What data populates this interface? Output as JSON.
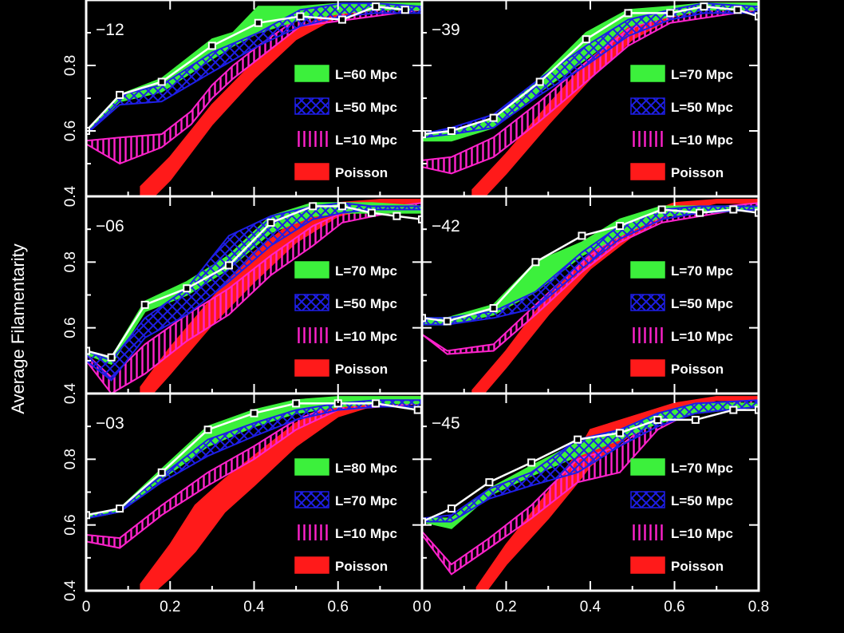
{
  "chart_data": {
    "type": "area",
    "ylabel": "Average Filamentarity",
    "xlim": [
      0,
      0.8
    ],
    "ylim": [
      0.4,
      1.0
    ],
    "x_ticks": [
      "0",
      "0.2",
      "0.4",
      "0.6",
      "0.8"
    ],
    "x_ticks_left": [
      "0",
      "0.2",
      "0.4",
      "0.6",
      "0"
    ],
    "y_ticks": [
      "0.4",
      "0.6",
      "0.8"
    ],
    "colors": {
      "large": "#3cf03c",
      "medium": "#1e1ee6",
      "small": "#ff22cc",
      "poisson": "#ff1a1a",
      "data": "#ffffff"
    },
    "panels": [
      {
        "label": "−12",
        "legend": [
          "L=60 Mpc",
          "L=50 Mpc",
          "L=10 Mpc",
          "Poisson"
        ],
        "data_x": [
          0.0,
          0.08,
          0.18,
          0.3,
          0.41,
          0.51,
          0.61,
          0.69,
          0.76
        ],
        "data_y": [
          0.6,
          0.71,
          0.75,
          0.86,
          0.93,
          0.95,
          0.94,
          0.98,
          0.97
        ],
        "large_x": [
          0.0,
          0.08,
          0.18,
          0.3,
          0.35,
          0.41,
          0.51,
          0.61,
          0.69,
          0.8
        ],
        "large_lo": [
          0.59,
          0.69,
          0.72,
          0.82,
          0.86,
          0.9,
          0.94,
          0.96,
          0.97,
          0.97
        ],
        "large_hi": [
          0.6,
          0.71,
          0.76,
          0.88,
          0.9,
          0.98,
          0.98,
          0.99,
          0.99,
          0.99
        ],
        "medium_x": [
          0.0,
          0.08,
          0.18,
          0.3,
          0.41,
          0.51,
          0.61,
          0.69,
          0.8
        ],
        "medium_lo": [
          0.59,
          0.68,
          0.69,
          0.78,
          0.86,
          0.92,
          0.95,
          0.96,
          0.96
        ],
        "medium_hi": [
          0.6,
          0.71,
          0.74,
          0.84,
          0.9,
          0.97,
          0.99,
          0.99,
          0.98
        ],
        "small_x": [
          0.0,
          0.08,
          0.18,
          0.25,
          0.3,
          0.35,
          0.41,
          0.51,
          0.8
        ],
        "small_lo": [
          0.56,
          0.5,
          0.55,
          0.62,
          0.7,
          0.76,
          0.82,
          0.92,
          0.97
        ],
        "small_hi": [
          0.57,
          0.58,
          0.59,
          0.66,
          0.74,
          0.8,
          0.86,
          0.95,
          0.98
        ],
        "poisson_x": [
          0.13,
          0.2,
          0.3,
          0.4,
          0.5,
          0.6,
          0.7,
          0.8
        ],
        "poisson_lo": [
          0.36,
          0.45,
          0.62,
          0.76,
          0.88,
          0.95,
          0.98,
          0.98
        ],
        "poisson_hi": [
          0.43,
          0.52,
          0.68,
          0.81,
          0.91,
          0.97,
          0.99,
          0.99
        ]
      },
      {
        "label": "−39",
        "legend": [
          "L=70 Mpc",
          "L=50 Mpc",
          "L=10 Mpc",
          "Poisson"
        ],
        "data_x": [
          0.0,
          0.07,
          0.17,
          0.28,
          0.39,
          0.49,
          0.59,
          0.67,
          0.75,
          0.8
        ],
        "data_y": [
          0.59,
          0.6,
          0.64,
          0.75,
          0.88,
          0.96,
          0.96,
          0.98,
          0.97,
          0.95
        ],
        "large_x": [
          0.0,
          0.07,
          0.17,
          0.28,
          0.39,
          0.49,
          0.59,
          0.67,
          0.8
        ],
        "large_lo": [
          0.57,
          0.57,
          0.61,
          0.72,
          0.82,
          0.92,
          0.95,
          0.97,
          0.97
        ],
        "large_hi": [
          0.59,
          0.6,
          0.64,
          0.76,
          0.9,
          0.97,
          0.98,
          0.99,
          0.99
        ],
        "medium_x": [
          0.0,
          0.07,
          0.17,
          0.28,
          0.39,
          0.49,
          0.59,
          0.67,
          0.8
        ],
        "medium_lo": [
          0.58,
          0.59,
          0.61,
          0.71,
          0.8,
          0.89,
          0.94,
          0.96,
          0.96
        ],
        "medium_hi": [
          0.59,
          0.61,
          0.65,
          0.76,
          0.86,
          0.94,
          0.97,
          0.99,
          0.98
        ],
        "small_x": [
          0.0,
          0.07,
          0.17,
          0.28,
          0.39,
          0.49,
          0.59,
          0.8
        ],
        "small_lo": [
          0.49,
          0.47,
          0.52,
          0.63,
          0.75,
          0.86,
          0.93,
          0.97
        ],
        "small_hi": [
          0.51,
          0.52,
          0.58,
          0.69,
          0.81,
          0.91,
          0.96,
          0.99
        ],
        "poisson_x": [
          0.12,
          0.2,
          0.3,
          0.4,
          0.5,
          0.6,
          0.7,
          0.8
        ],
        "poisson_lo": [
          0.36,
          0.47,
          0.62,
          0.76,
          0.88,
          0.95,
          0.98,
          0.98
        ],
        "poisson_hi": [
          0.42,
          0.53,
          0.68,
          0.82,
          0.93,
          0.98,
          0.99,
          0.99
        ]
      },
      {
        "label": "−06",
        "legend": [
          "L=70 Mpc",
          "L=50 Mpc",
          "L=10 Mpc",
          "Poisson"
        ],
        "data_x": [
          0.0,
          0.06,
          0.14,
          0.24,
          0.34,
          0.44,
          0.54,
          0.61,
          0.68,
          0.74,
          0.8
        ],
        "data_y": [
          0.53,
          0.51,
          0.67,
          0.72,
          0.79,
          0.92,
          0.97,
          0.97,
          0.95,
          0.94,
          0.93
        ],
        "large_x": [
          0.0,
          0.06,
          0.14,
          0.24,
          0.34,
          0.44,
          0.54,
          0.61,
          0.68,
          0.8
        ],
        "large_lo": [
          0.52,
          0.49,
          0.65,
          0.7,
          0.78,
          0.89,
          0.94,
          0.95,
          0.95,
          0.95
        ],
        "large_hi": [
          0.53,
          0.51,
          0.68,
          0.74,
          0.82,
          0.94,
          0.98,
          0.98,
          0.98,
          0.97
        ],
        "medium_x": [
          0.0,
          0.06,
          0.14,
          0.24,
          0.34,
          0.44,
          0.54,
          0.61,
          0.68,
          0.8
        ],
        "medium_lo": [
          0.5,
          0.44,
          0.57,
          0.64,
          0.74,
          0.85,
          0.93,
          0.95,
          0.96,
          0.96
        ],
        "medium_hi": [
          0.53,
          0.5,
          0.63,
          0.72,
          0.88,
          0.94,
          0.97,
          0.98,
          0.97,
          0.97
        ],
        "small_x": [
          0.0,
          0.06,
          0.14,
          0.24,
          0.34,
          0.44,
          0.54,
          0.61,
          0.8
        ],
        "small_lo": [
          0.5,
          0.4,
          0.46,
          0.56,
          0.64,
          0.76,
          0.85,
          0.92,
          0.97
        ],
        "small_hi": [
          0.52,
          0.45,
          0.55,
          0.64,
          0.72,
          0.82,
          0.91,
          0.95,
          0.98
        ],
        "poisson_x": [
          0.13,
          0.2,
          0.3,
          0.4,
          0.5,
          0.6,
          0.7,
          0.8
        ],
        "poisson_lo": [
          0.36,
          0.46,
          0.61,
          0.74,
          0.86,
          0.94,
          0.97,
          0.98
        ],
        "poisson_hi": [
          0.42,
          0.54,
          0.69,
          0.83,
          0.93,
          0.98,
          0.99,
          0.99
        ]
      },
      {
        "label": "−42",
        "legend": [
          "L=70 Mpc",
          "L=50 Mpc",
          "L=10 Mpc",
          "Poisson"
        ],
        "data_x": [
          0.0,
          0.06,
          0.17,
          0.27,
          0.38,
          0.47,
          0.57,
          0.66,
          0.74,
          0.8
        ],
        "data_y": [
          0.63,
          0.62,
          0.66,
          0.8,
          0.88,
          0.91,
          0.96,
          0.95,
          0.96,
          0.95
        ],
        "large_x": [
          0.0,
          0.06,
          0.17,
          0.27,
          0.38,
          0.47,
          0.57,
          0.66,
          0.8
        ],
        "large_lo": [
          0.61,
          0.61,
          0.64,
          0.71,
          0.82,
          0.88,
          0.94,
          0.95,
          0.96
        ],
        "large_hi": [
          0.63,
          0.63,
          0.67,
          0.8,
          0.86,
          0.93,
          0.97,
          0.97,
          0.97
        ],
        "medium_x": [
          0.0,
          0.06,
          0.17,
          0.27,
          0.38,
          0.47,
          0.57,
          0.66,
          0.8
        ],
        "medium_lo": [
          0.61,
          0.61,
          0.63,
          0.66,
          0.78,
          0.87,
          0.93,
          0.95,
          0.96
        ],
        "medium_hi": [
          0.63,
          0.63,
          0.65,
          0.71,
          0.83,
          0.91,
          0.96,
          0.97,
          0.97
        ],
        "small_x": [
          0.0,
          0.06,
          0.17,
          0.27,
          0.38,
          0.47,
          0.57,
          0.8
        ],
        "small_lo": [
          0.58,
          0.52,
          0.53,
          0.64,
          0.77,
          0.86,
          0.92,
          0.97
        ],
        "small_hi": [
          0.58,
          0.53,
          0.55,
          0.67,
          0.8,
          0.89,
          0.95,
          0.98
        ],
        "poisson_x": [
          0.12,
          0.2,
          0.3,
          0.4,
          0.5,
          0.6,
          0.7,
          0.8
        ],
        "poisson_lo": [
          0.36,
          0.48,
          0.64,
          0.78,
          0.88,
          0.95,
          0.98,
          0.98
        ],
        "poisson_hi": [
          0.41,
          0.53,
          0.7,
          0.83,
          0.93,
          0.98,
          0.99,
          0.99
        ]
      },
      {
        "label": "−03",
        "legend": [
          "L=80 Mpc",
          "L=70 Mpc",
          "L=10 Mpc",
          "Poisson"
        ],
        "data_x": [
          0.0,
          0.08,
          0.18,
          0.29,
          0.4,
          0.5,
          0.6,
          0.69,
          0.79
        ],
        "data_y": [
          0.63,
          0.65,
          0.76,
          0.89,
          0.94,
          0.97,
          0.97,
          0.97,
          0.95
        ],
        "large_x": [
          0.0,
          0.08,
          0.18,
          0.29,
          0.4,
          0.5,
          0.6,
          0.69,
          0.8
        ],
        "large_lo": [
          0.62,
          0.64,
          0.74,
          0.84,
          0.9,
          0.94,
          0.96,
          0.97,
          0.97
        ],
        "large_hi": [
          0.63,
          0.65,
          0.77,
          0.9,
          0.95,
          0.98,
          0.99,
          0.99,
          0.99
        ],
        "medium_x": [
          0.0,
          0.08,
          0.18,
          0.29,
          0.4,
          0.5,
          0.6,
          0.69,
          0.8
        ],
        "medium_lo": [
          0.62,
          0.64,
          0.73,
          0.81,
          0.87,
          0.92,
          0.95,
          0.96,
          0.96
        ],
        "medium_hi": [
          0.63,
          0.65,
          0.75,
          0.86,
          0.91,
          0.95,
          0.97,
          0.98,
          0.98
        ],
        "small_x": [
          0.0,
          0.08,
          0.18,
          0.29,
          0.4,
          0.5,
          0.6,
          0.8
        ],
        "small_lo": [
          0.55,
          0.53,
          0.63,
          0.72,
          0.8,
          0.89,
          0.95,
          0.97
        ],
        "small_hi": [
          0.57,
          0.56,
          0.66,
          0.76,
          0.84,
          0.92,
          0.97,
          0.98
        ],
        "poisson_x": [
          0.13,
          0.2,
          0.26,
          0.33,
          0.4,
          0.5,
          0.6,
          0.7,
          0.8
        ],
        "poisson_lo": [
          0.36,
          0.44,
          0.52,
          0.64,
          0.72,
          0.84,
          0.93,
          0.97,
          0.98
        ],
        "poisson_hi": [
          0.42,
          0.54,
          0.66,
          0.74,
          0.81,
          0.91,
          0.97,
          0.99,
          0.99
        ]
      },
      {
        "label": "−45",
        "legend": [
          "L=70 Mpc",
          "L=50 Mpc",
          "L=10 Mpc",
          "Poisson"
        ],
        "data_x": [
          0.0,
          0.07,
          0.16,
          0.26,
          0.37,
          0.47,
          0.56,
          0.65,
          0.74,
          0.8
        ],
        "data_y": [
          0.61,
          0.65,
          0.73,
          0.79,
          0.86,
          0.88,
          0.92,
          0.92,
          0.95,
          0.95
        ],
        "large_x": [
          0.0,
          0.07,
          0.16,
          0.26,
          0.37,
          0.47,
          0.56,
          0.65,
          0.8
        ],
        "large_lo": [
          0.61,
          0.59,
          0.69,
          0.75,
          0.81,
          0.86,
          0.91,
          0.94,
          0.96
        ],
        "large_hi": [
          0.62,
          0.62,
          0.71,
          0.78,
          0.85,
          0.89,
          0.94,
          0.97,
          0.97
        ],
        "medium_x": [
          0.0,
          0.07,
          0.16,
          0.26,
          0.37,
          0.47,
          0.56,
          0.65,
          0.8
        ],
        "medium_lo": [
          0.61,
          0.61,
          0.68,
          0.72,
          0.76,
          0.84,
          0.9,
          0.94,
          0.96
        ],
        "medium_hi": [
          0.62,
          0.63,
          0.71,
          0.76,
          0.86,
          0.89,
          0.94,
          0.97,
          0.98
        ],
        "small_x": [
          0.0,
          0.07,
          0.16,
          0.26,
          0.37,
          0.47,
          0.56,
          0.65,
          0.8
        ],
        "small_lo": [
          0.57,
          0.45,
          0.53,
          0.62,
          0.73,
          0.76,
          0.89,
          0.95,
          0.97
        ],
        "small_hi": [
          0.58,
          0.48,
          0.56,
          0.66,
          0.8,
          0.84,
          0.93,
          0.97,
          0.98
        ],
        "poisson_x": [
          0.13,
          0.2,
          0.3,
          0.37,
          0.4,
          0.5,
          0.6,
          0.7,
          0.8
        ],
        "poisson_lo": [
          0.36,
          0.48,
          0.62,
          0.73,
          0.78,
          0.88,
          0.95,
          0.98,
          0.98
        ],
        "poisson_hi": [
          0.41,
          0.54,
          0.7,
          0.82,
          0.89,
          0.93,
          0.97,
          0.99,
          0.99
        ]
      }
    ]
  }
}
